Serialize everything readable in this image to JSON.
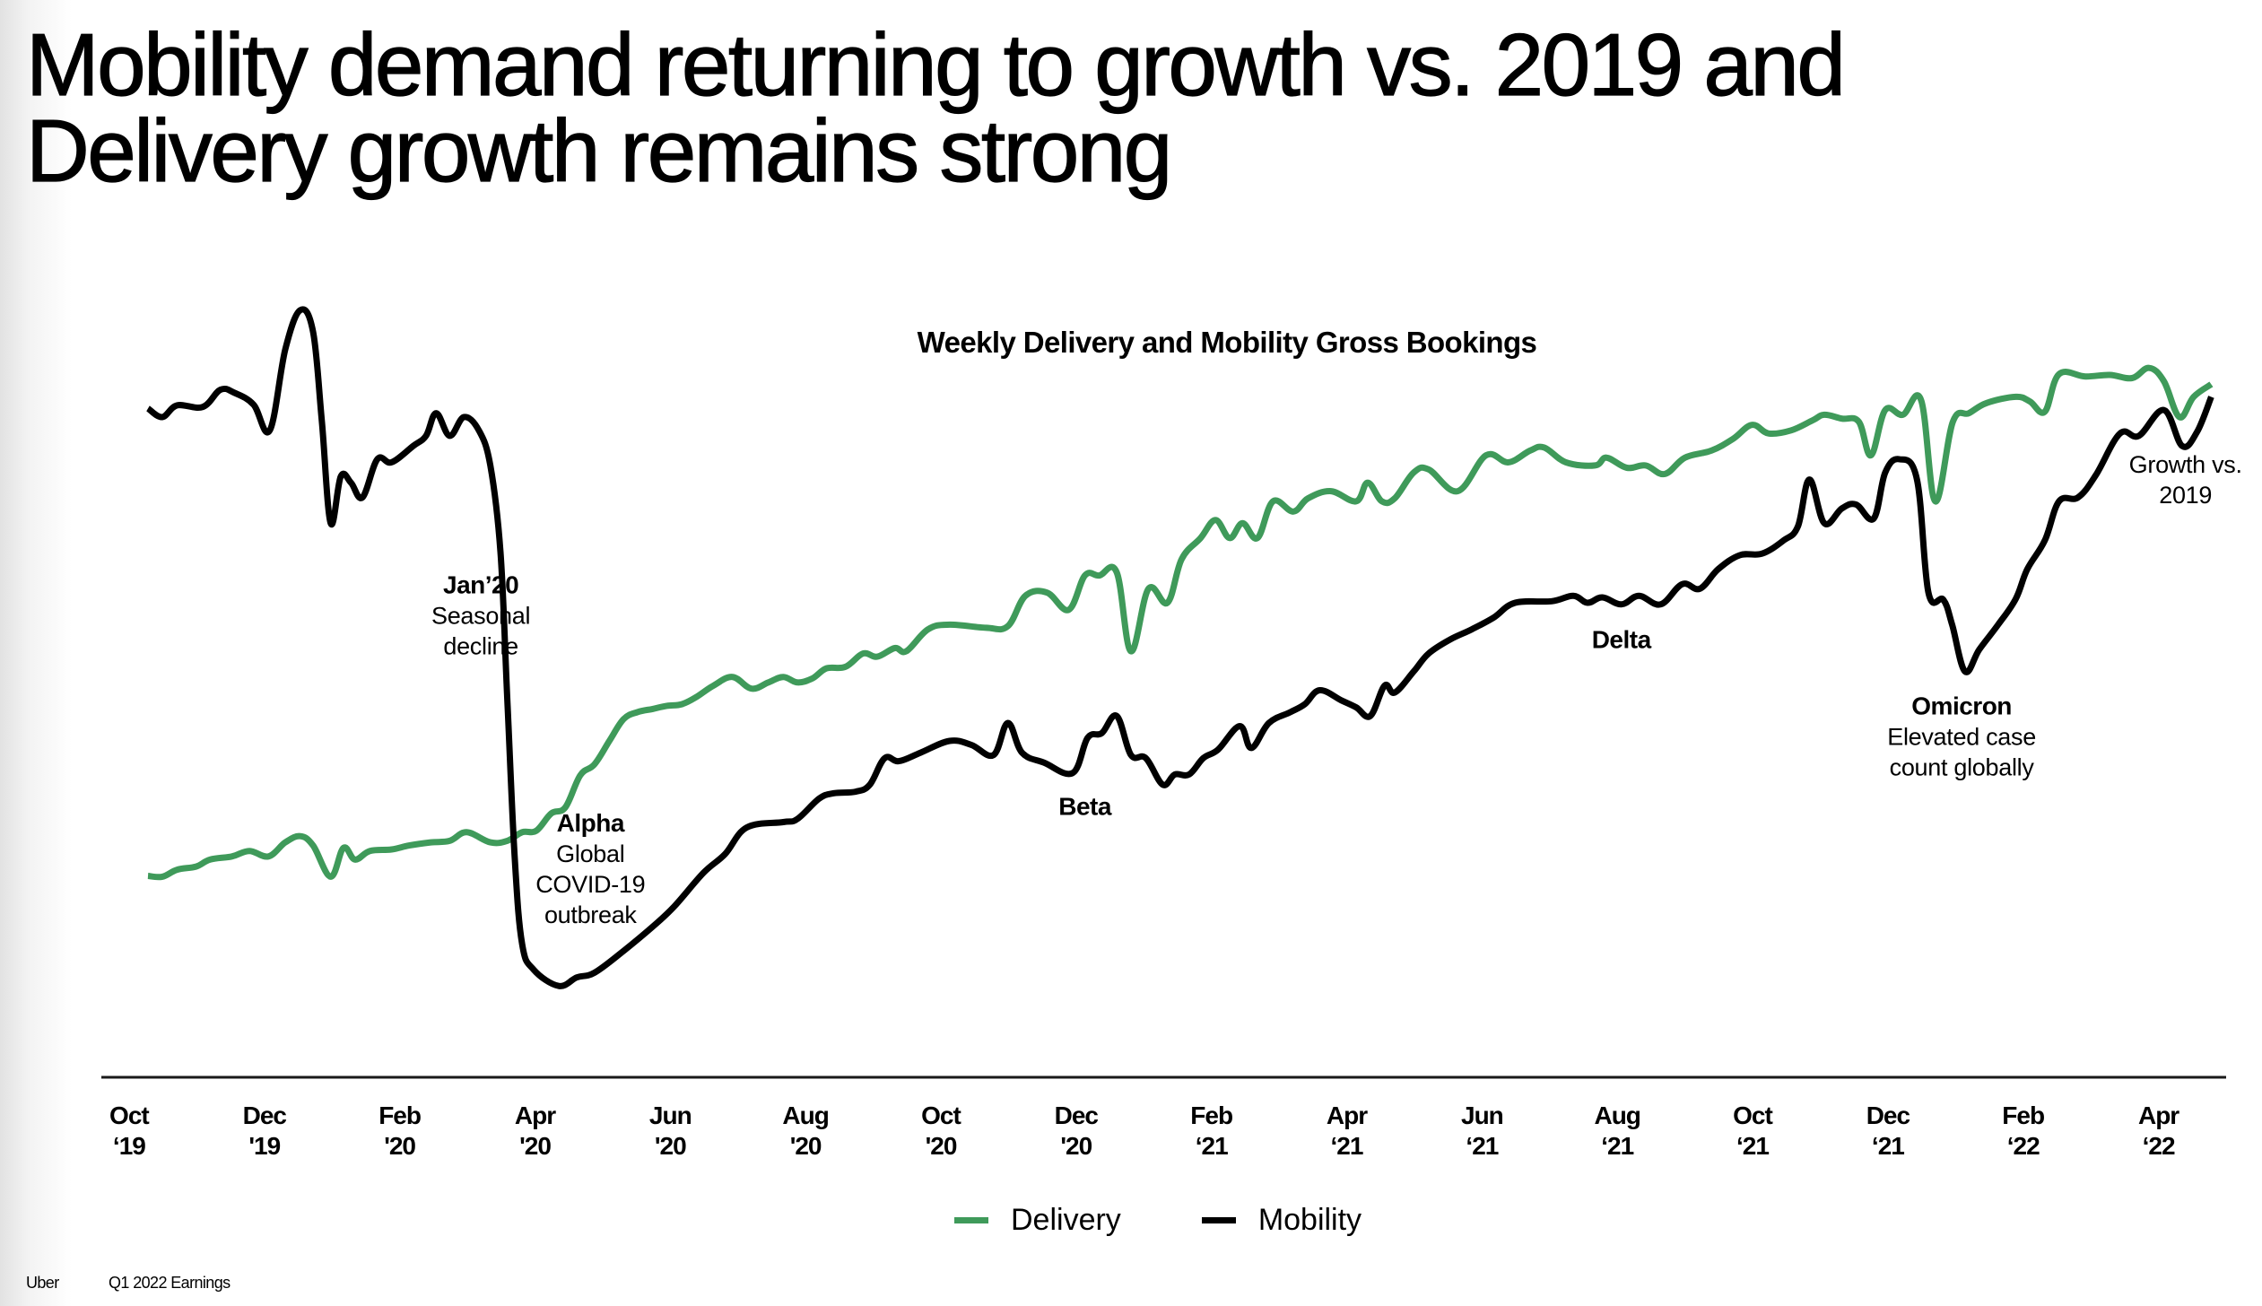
{
  "slide": {
    "title_lines": [
      "Mobility demand returning to growth vs. 2019 and",
      "Delivery growth remains strong"
    ],
    "footer": {
      "brand": "Uber",
      "label": "Q1 2022 Earnings"
    }
  },
  "colors": {
    "delivery": "#3f9a5a",
    "mobility": "#000000",
    "axis": "#1a1a1a"
  },
  "chart_data": {
    "type": "line",
    "title": "Weekly Delivery and Mobility Gross Bookings",
    "xlabel": "",
    "ylabel": "",
    "x_unit": "months since Oct 2019",
    "y_unit": "relative index of weekly gross bookings (no y-axis shown)",
    "xlim": [
      -0.41,
      31.0
    ],
    "ylim": [
      0,
      100
    ],
    "grid": false,
    "legend_position": "bottom-center",
    "x_ticks": [
      {
        "x": 0,
        "month": "Oct",
        "year": "‘19"
      },
      {
        "x": 2,
        "month": "Dec",
        "year": "'19"
      },
      {
        "x": 4,
        "month": "Feb",
        "year": "'20"
      },
      {
        "x": 6,
        "month": "Apr",
        "year": "'20"
      },
      {
        "x": 8,
        "month": "Jun",
        "year": "'20"
      },
      {
        "x": 10,
        "month": "Aug",
        "year": "'20"
      },
      {
        "x": 12,
        "month": "Oct",
        "year": "'20"
      },
      {
        "x": 14,
        "month": "Dec",
        "year": "'20"
      },
      {
        "x": 16,
        "month": "Feb",
        "year": "‘21"
      },
      {
        "x": 18,
        "month": "Apr",
        "year": "‘21"
      },
      {
        "x": 20,
        "month": "Jun",
        "year": "‘21"
      },
      {
        "x": 22,
        "month": "Aug",
        "year": "‘21"
      },
      {
        "x": 24,
        "month": "Oct",
        "year": "‘21"
      },
      {
        "x": 26,
        "month": "Dec",
        "year": "‘21"
      },
      {
        "x": 28,
        "month": "Feb",
        "year": "‘22"
      },
      {
        "x": 30,
        "month": "Apr",
        "year": "‘22"
      }
    ],
    "series": [
      {
        "name": "Delivery",
        "color": "#3f9a5a",
        "x": [
          0.28,
          0.49,
          0.71,
          0.99,
          1.2,
          1.52,
          1.78,
          2.06,
          2.31,
          2.53,
          2.72,
          2.98,
          3.17,
          3.34,
          3.56,
          3.88,
          4.14,
          4.46,
          4.74,
          4.99,
          5.34,
          5.59,
          5.81,
          6.02,
          6.24,
          6.45,
          6.67,
          6.88,
          7.1,
          7.31,
          7.52,
          7.74,
          7.95,
          8.17,
          8.38,
          8.64,
          8.92,
          9.2,
          9.45,
          9.67,
          9.88,
          10.1,
          10.31,
          10.59,
          10.85,
          11.06,
          11.32,
          11.49,
          11.81,
          12.13,
          12.67,
          12.99,
          13.25,
          13.57,
          13.89,
          14.13,
          14.34,
          14.6,
          14.81,
          15.07,
          15.35,
          15.56,
          15.84,
          16.06,
          16.27,
          16.46,
          16.68,
          16.91,
          17.21,
          17.43,
          17.77,
          18.14,
          18.31,
          18.52,
          18.71,
          18.99,
          19.21,
          19.64,
          20.06,
          20.39,
          20.71,
          20.92,
          21.24,
          21.67,
          21.84,
          22.14,
          22.42,
          22.7,
          23.0,
          23.39,
          23.71,
          23.99,
          24.24,
          24.57,
          24.89,
          25.06,
          25.32,
          25.57,
          25.75,
          25.96,
          26.22,
          26.49,
          26.7,
          26.96,
          27.2,
          27.46,
          27.89,
          28.1,
          28.32,
          28.53,
          28.92,
          29.28,
          29.61,
          29.86,
          30.08,
          30.31,
          30.52,
          30.78
        ],
        "values": [
          25.8,
          25.7,
          26.6,
          27.0,
          27.9,
          28.3,
          29.0,
          28.3,
          30.1,
          30.9,
          29.7,
          25.7,
          29.4,
          27.9,
          29.0,
          29.2,
          29.7,
          30.1,
          30.3,
          31.4,
          30.1,
          30.3,
          31.4,
          31.6,
          33.8,
          34.6,
          38.7,
          40.1,
          43.1,
          45.9,
          46.8,
          47.2,
          47.6,
          47.8,
          48.7,
          50.2,
          51.3,
          49.8,
          50.6,
          51.3,
          50.6,
          51.1,
          52.4,
          52.6,
          54.3,
          53.9,
          55.0,
          54.6,
          57.4,
          58.0,
          57.6,
          57.8,
          61.7,
          62.1,
          59.9,
          64.3,
          64.3,
          64.7,
          54.6,
          62.6,
          60.8,
          66.4,
          69.1,
          71.4,
          69.1,
          71.0,
          69.1,
          73.8,
          72.5,
          74.2,
          75.1,
          73.8,
          76.2,
          73.8,
          74.2,
          77.5,
          77.9,
          75.1,
          79.7,
          78.8,
          80.3,
          80.7,
          78.8,
          78.4,
          79.4,
          78.1,
          78.4,
          77.3,
          79.4,
          80.3,
          81.8,
          83.6,
          82.5,
          82.9,
          84.2,
          84.9,
          84.4,
          84.0,
          79.7,
          85.5,
          84.9,
          86.8,
          73.8,
          84.0,
          85.1,
          86.4,
          87.2,
          86.6,
          85.3,
          90.1,
          89.8,
          90.0,
          89.6,
          90.9,
          89.2,
          84.6,
          87.2,
          88.8
        ]
      },
      {
        "name": "Mobility",
        "color": "#000000",
        "x": [
          0.28,
          0.49,
          0.71,
          1.09,
          1.35,
          1.56,
          1.84,
          2.08,
          2.31,
          2.53,
          2.72,
          2.85,
          2.98,
          3.13,
          3.28,
          3.45,
          3.67,
          3.88,
          4.2,
          4.39,
          4.54,
          4.74,
          4.95,
          5.17,
          5.34,
          5.49,
          5.59,
          5.7,
          5.81,
          5.98,
          6.35,
          6.62,
          6.88,
          7.31,
          7.74,
          8.06,
          8.49,
          8.81,
          9.13,
          9.67,
          9.88,
          10.2,
          10.42,
          10.74,
          10.95,
          11.17,
          11.38,
          11.7,
          12.13,
          12.45,
          12.78,
          12.99,
          13.2,
          13.53,
          13.95,
          14.17,
          14.38,
          14.6,
          14.81,
          15.03,
          15.28,
          15.46,
          15.67,
          15.88,
          16.1,
          16.42,
          16.59,
          16.85,
          17.17,
          17.38,
          17.6,
          17.92,
          18.14,
          18.35,
          18.56,
          18.71,
          18.99,
          19.21,
          19.53,
          19.85,
          20.17,
          20.49,
          21.03,
          21.35,
          21.56,
          21.78,
          22.06,
          22.32,
          22.64,
          22.96,
          23.22,
          23.49,
          23.81,
          24.14,
          24.46,
          24.67,
          24.84,
          25.06,
          25.32,
          25.53,
          25.79,
          25.96,
          26.17,
          26.43,
          26.6,
          26.82,
          26.95,
          27.14,
          27.35,
          27.63,
          27.89,
          28.06,
          28.32,
          28.53,
          28.81,
          29.07,
          29.43,
          29.71,
          30.08,
          30.35,
          30.57,
          30.78
        ],
        "values": [
          85.7,
          84.6,
          86.1,
          85.9,
          88.1,
          87.7,
          86.2,
          82.9,
          93.3,
          98.3,
          95.5,
          84.0,
          71.0,
          77.0,
          76.2,
          74.3,
          79.2,
          78.8,
          80.9,
          82.2,
          85.1,
          82.2,
          84.6,
          82.9,
          78.4,
          67.3,
          48.7,
          28.3,
          17.1,
          13.8,
          11.7,
          12.8,
          13.4,
          16.2,
          19.3,
          21.9,
          26.2,
          28.6,
          32.0,
          32.7,
          33.1,
          35.7,
          36.4,
          36.6,
          37.5,
          40.9,
          40.5,
          41.6,
          43.1,
          42.6,
          41.3,
          45.4,
          41.6,
          40.3,
          39.0,
          43.5,
          44.1,
          46.3,
          41.3,
          40.9,
          37.5,
          38.8,
          38.8,
          40.9,
          42.0,
          45.0,
          42.2,
          45.4,
          46.8,
          47.8,
          49.6,
          48.3,
          47.4,
          46.3,
          50.2,
          49.3,
          52.0,
          54.3,
          56.1,
          57.4,
          58.9,
          60.8,
          61.0,
          61.7,
          60.8,
          61.5,
          60.6,
          61.7,
          60.6,
          63.2,
          62.6,
          65.1,
          66.9,
          67.1,
          68.8,
          70.6,
          76.6,
          71.0,
          72.9,
          73.4,
          71.6,
          77.5,
          79.2,
          76.6,
          62.1,
          61.2,
          58.0,
          52.0,
          54.8,
          58.0,
          61.3,
          65.1,
          68.8,
          73.8,
          74.3,
          77.1,
          82.5,
          82.2,
          85.5,
          80.9,
          82.7,
          87.2
        ]
      }
    ],
    "annotations": [
      {
        "x": 5.2,
        "y": 0,
        "lines": [
          {
            "text": "Jan’20",
            "bold": true
          },
          {
            "text": "Seasonal",
            "bold": false
          },
          {
            "text": "decline",
            "bold": false
          }
        ],
        "anchor_y": 62.0
      },
      {
        "x": 6.82,
        "y": 0,
        "lines": [
          {
            "text": "Alpha",
            "bold": true
          },
          {
            "text": "Global",
            "bold": false
          },
          {
            "text": "COVID-19",
            "bold": false
          },
          {
            "text": "outbreak",
            "bold": false
          }
        ],
        "anchor_y": 31.5
      },
      {
        "x": 14.13,
        "y": 0,
        "lines": [
          {
            "text": "Beta",
            "bold": true
          }
        ],
        "anchor_y": 33.6
      },
      {
        "x": 22.06,
        "y": 0,
        "lines": [
          {
            "text": "Delta",
            "bold": true
          }
        ],
        "anchor_y": 55.0
      },
      {
        "x": 27.09,
        "y": 0,
        "lines": [
          {
            "text": "Omicron",
            "bold": true
          },
          {
            "text": "Elevated case",
            "bold": false
          },
          {
            "text": "count globally",
            "bold": false
          }
        ],
        "anchor_y": 46.5
      },
      {
        "x": 30.4,
        "y": 0,
        "lines": [
          {
            "text": "Growth vs.",
            "bold": false
          },
          {
            "text": "2019",
            "bold": false
          }
        ],
        "anchor_y": 77.5
      }
    ]
  },
  "legend": [
    {
      "label": "Delivery",
      "color": "#3f9a5a"
    },
    {
      "label": "Mobility",
      "color": "#000000"
    }
  ]
}
